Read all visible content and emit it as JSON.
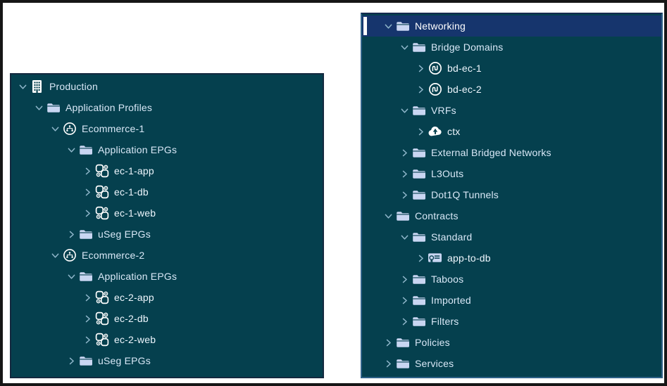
{
  "colors": {
    "panel_bg": "#05404E",
    "selected_bg": "#16356D",
    "selection_marker": "#FFFFFF",
    "folder_fill": "#C9D6F2",
    "icon_white": "#FFFFFF",
    "chevron": "#8FB6CA",
    "label_text": "#D9E8F7",
    "selected_text": "#FFFFFF",
    "frame_border": "#161616"
  },
  "left_panel": {
    "items": [
      {
        "label": "Production",
        "icon": "tenant-icon",
        "level": 0,
        "chevron": "down",
        "leaf": false,
        "selected": false
      },
      {
        "label": "Application Profiles",
        "icon": "folder-icon",
        "level": 1,
        "chevron": "down",
        "leaf": false,
        "selected": false
      },
      {
        "label": "Ecommerce-1",
        "icon": "app-profile-icon",
        "level": 2,
        "chevron": "down",
        "leaf": false,
        "selected": false
      },
      {
        "label": "Application EPGs",
        "icon": "folder-icon",
        "level": 3,
        "chevron": "down",
        "leaf": false,
        "selected": false
      },
      {
        "label": "ec-1-app",
        "icon": "epg-icon",
        "level": 4,
        "chevron": "right",
        "leaf": true,
        "selected": false
      },
      {
        "label": "ec-1-db",
        "icon": "epg-icon",
        "level": 4,
        "chevron": "right",
        "leaf": true,
        "selected": false
      },
      {
        "label": "ec-1-web",
        "icon": "epg-icon",
        "level": 4,
        "chevron": "right",
        "leaf": true,
        "selected": false
      },
      {
        "label": "uSeg EPGs",
        "icon": "folder-icon",
        "level": 3,
        "chevron": "right",
        "leaf": false,
        "selected": false
      },
      {
        "label": "Ecommerce-2",
        "icon": "app-profile-icon",
        "level": 2,
        "chevron": "down",
        "leaf": false,
        "selected": false
      },
      {
        "label": "Application EPGs",
        "icon": "folder-icon",
        "level": 3,
        "chevron": "down",
        "leaf": false,
        "selected": false
      },
      {
        "label": "ec-2-app",
        "icon": "epg-icon",
        "level": 4,
        "chevron": "right",
        "leaf": true,
        "selected": false
      },
      {
        "label": "ec-2-db",
        "icon": "epg-icon",
        "level": 4,
        "chevron": "right",
        "leaf": true,
        "selected": false
      },
      {
        "label": "ec-2-web",
        "icon": "epg-icon",
        "level": 4,
        "chevron": "right",
        "leaf": true,
        "selected": false
      },
      {
        "label": "uSeg EPGs",
        "icon": "folder-icon",
        "level": 3,
        "chevron": "right",
        "leaf": false,
        "selected": false
      }
    ]
  },
  "right_panel": {
    "items": [
      {
        "label": "Networking",
        "icon": "folder-icon",
        "level": 0,
        "chevron": "down",
        "leaf": false,
        "selected": true
      },
      {
        "label": "Bridge Domains",
        "icon": "folder-icon",
        "level": 1,
        "chevron": "down",
        "leaf": false,
        "selected": false
      },
      {
        "label": "bd-ec-1",
        "icon": "bridge-domain-icon",
        "level": 2,
        "chevron": "right",
        "leaf": true,
        "selected": false
      },
      {
        "label": "bd-ec-2",
        "icon": "bridge-domain-icon",
        "level": 2,
        "chevron": "right",
        "leaf": true,
        "selected": false
      },
      {
        "label": "VRFs",
        "icon": "folder-icon",
        "level": 1,
        "chevron": "down",
        "leaf": false,
        "selected": false
      },
      {
        "label": "ctx",
        "icon": "vrf-cloud-icon",
        "level": 2,
        "chevron": "right",
        "leaf": true,
        "selected": false
      },
      {
        "label": "External Bridged Networks",
        "icon": "folder-icon",
        "level": 1,
        "chevron": "right",
        "leaf": false,
        "selected": false
      },
      {
        "label": "L3Outs",
        "icon": "folder-icon",
        "level": 1,
        "chevron": "right",
        "leaf": false,
        "selected": false
      },
      {
        "label": "Dot1Q Tunnels",
        "icon": "folder-icon",
        "level": 1,
        "chevron": "right",
        "leaf": false,
        "selected": false
      },
      {
        "label": "Contracts",
        "icon": "folder-icon",
        "level": 0,
        "chevron": "down",
        "leaf": false,
        "selected": false
      },
      {
        "label": "Standard",
        "icon": "folder-icon",
        "level": 1,
        "chevron": "down",
        "leaf": false,
        "selected": false
      },
      {
        "label": "app-to-db",
        "icon": "contract-icon",
        "level": 2,
        "chevron": "right",
        "leaf": true,
        "selected": false
      },
      {
        "label": "Taboos",
        "icon": "folder-icon",
        "level": 1,
        "chevron": "right",
        "leaf": false,
        "selected": false
      },
      {
        "label": "Imported",
        "icon": "folder-icon",
        "level": 1,
        "chevron": "right",
        "leaf": false,
        "selected": false
      },
      {
        "label": "Filters",
        "icon": "folder-icon",
        "level": 1,
        "chevron": "right",
        "leaf": false,
        "selected": false
      },
      {
        "label": "Policies",
        "icon": "folder-icon",
        "level": 0,
        "chevron": "right",
        "leaf": false,
        "selected": false
      },
      {
        "label": "Services",
        "icon": "folder-icon",
        "level": 0,
        "chevron": "right",
        "leaf": false,
        "selected": false
      }
    ]
  }
}
